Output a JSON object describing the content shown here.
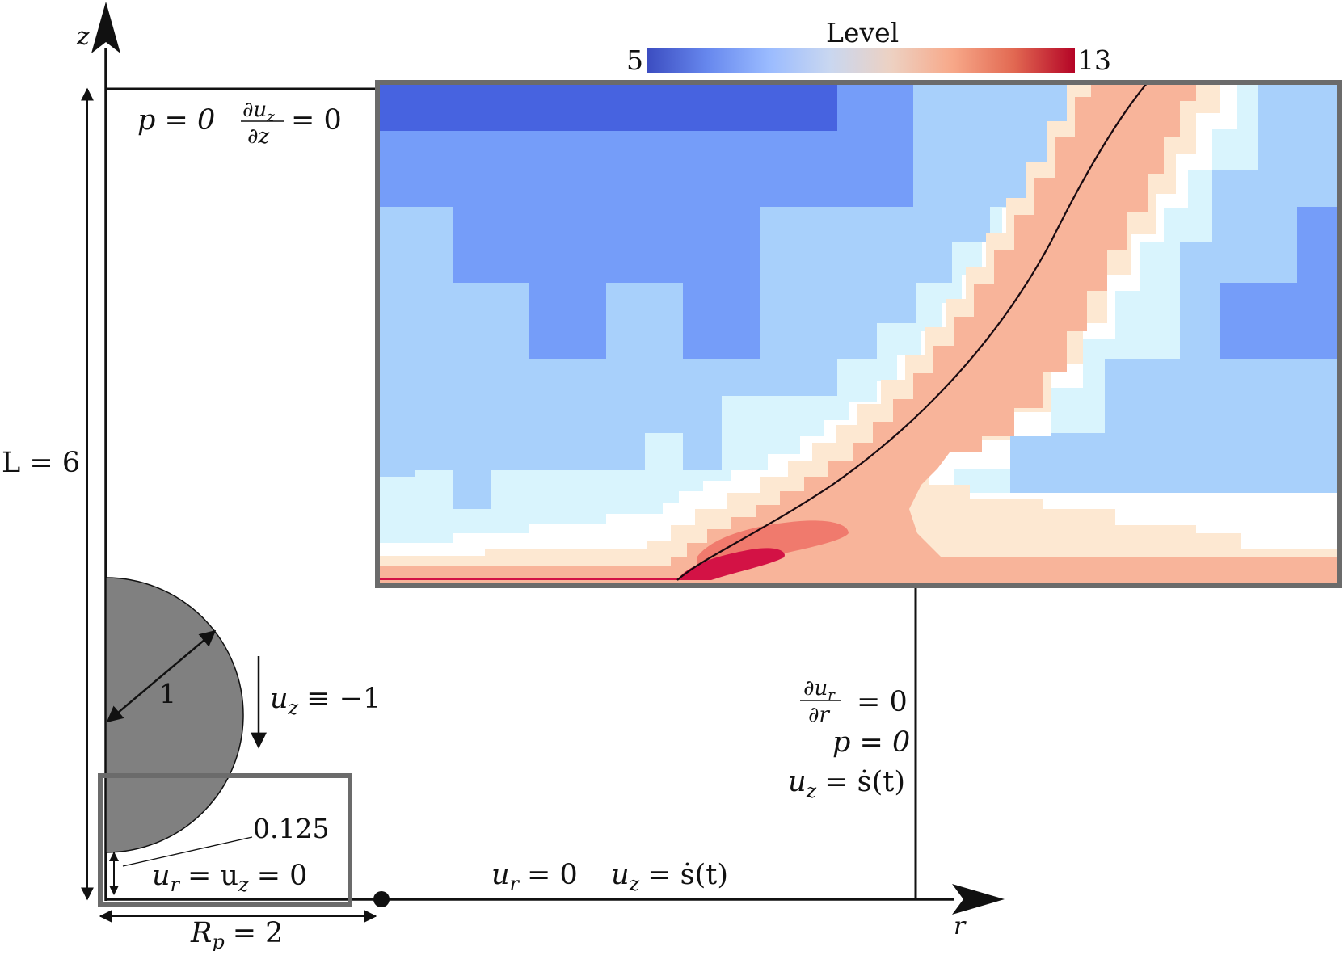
{
  "axes": {
    "z_label": "z",
    "r_label": "r"
  },
  "domain": {
    "height_label": "L = 6",
    "pipe_radius_label": "R",
    "pipe_radius_sub": "p",
    "pipe_radius_value": "= 2"
  },
  "sphere": {
    "radius_label": "1",
    "gap_label": "0.125",
    "velocity_lhs": "u",
    "velocity_sub": "z",
    "velocity_rhs": "≡ −1"
  },
  "boundary_conditions": {
    "top_p": "p = 0",
    "top_dudz_num": "∂u",
    "top_dudz_num_sub": "z",
    "top_dudz_den": "∂z",
    "top_dudz_rhs": "= 0",
    "right_dudr_num": "∂u",
    "right_dudr_num_sub": "r",
    "right_dudr_den": "∂r",
    "right_dudr_rhs": "= 0",
    "right_p": "p = 0",
    "right_uz": "u",
    "right_uz_sub": "z",
    "right_uz_rhs": "= ṡ(t)",
    "bottom_wall_ur": "u",
    "bottom_wall_ur_sub": "r",
    "bottom_wall_eq1": "= u",
    "bottom_wall_uz_sub": "z",
    "bottom_wall_rhs": "= 0",
    "bottom_free_ur": "u",
    "bottom_free_ur_sub": "r",
    "bottom_free_ur_rhs": "= 0",
    "bottom_free_uz": "u",
    "bottom_free_uz_sub": "z",
    "bottom_free_uz_rhs": "= ṡ(t)"
  },
  "colorbar": {
    "title": "Level",
    "min_label": "5",
    "max_label": "13",
    "min": 5,
    "max": 13,
    "colors": [
      "#3b4cc0",
      "#6788ee",
      "#9abbff",
      "#c9d7f0",
      "#edd1c2",
      "#f7a889",
      "#e26952",
      "#b40426"
    ]
  },
  "inset": {
    "level_colors": {
      "l7": "#4763e0",
      "l8": "#759df9",
      "l9": "#a8d0fb",
      "l10": "#d9f4fd",
      "l11": "#ffffff",
      "l12": "#fde8d2",
      "l13": "#f8b49a",
      "l14": "#f07a6d",
      "l15": "#d31245"
    },
    "interface_color": "#1a0a10"
  }
}
